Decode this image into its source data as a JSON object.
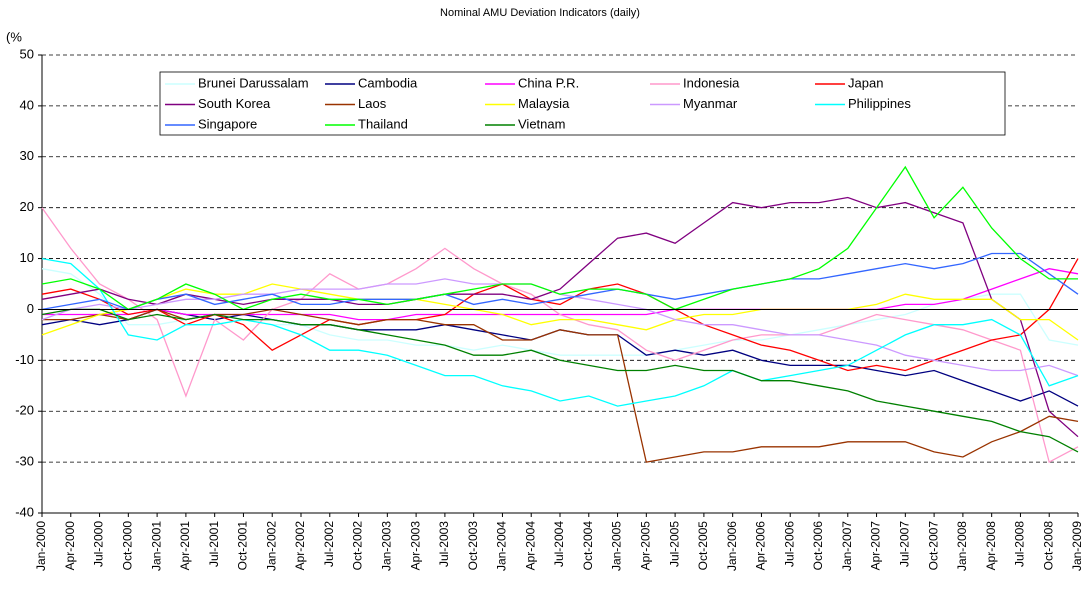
{
  "chart_data": {
    "type": "line",
    "title": "Nominal AMU Deviation Indicators (daily)",
    "y_label": "(%",
    "categories": [
      "Jan-2000",
      "Apr-2000",
      "Jul-2000",
      "Oct-2000",
      "Jan-2001",
      "Apr-2001",
      "Jul-2001",
      "Oct-2001",
      "Jan-2002",
      "Apr-2002",
      "Jul-2002",
      "Oct-2002",
      "Jan-2003",
      "Apr-2003",
      "Jul-2003",
      "Oct-2003",
      "Jan-2004",
      "Apr-2004",
      "Jul-2004",
      "Oct-2004",
      "Jan-2005",
      "Apr-2005",
      "Jul-2005",
      "Oct-2005",
      "Jan-2006",
      "Apr-2006",
      "Jul-2006",
      "Oct-2006",
      "Jan-2007",
      "Apr-2007",
      "Jul-2007",
      "Oct-2007",
      "Jan-2008",
      "Apr-2008",
      "Jul-2008",
      "Oct-2008",
      "Jan-2009"
    ],
    "ylim": [
      -40,
      50
    ],
    "yticks": [
      -40,
      -30,
      -20,
      -10,
      0,
      10,
      20,
      30,
      40,
      50
    ],
    "grid": true,
    "series": [
      {
        "name": "Brunei Darussalam",
        "color": "#ccffff",
        "values": [
          8,
          7,
          3,
          -3,
          -3,
          -2,
          -1,
          -2,
          -3,
          -3,
          -5,
          -6,
          -6,
          -7,
          -7,
          -8,
          -7,
          -8,
          -9,
          -9,
          -9,
          -9,
          -8,
          -7,
          -6,
          -6,
          -5,
          -4,
          -3,
          -2,
          -1,
          1,
          2,
          3,
          3,
          -6,
          -7
        ]
      },
      {
        "name": "Cambodia",
        "color": "#000080",
        "values": [
          -3,
          -2,
          -3,
          -2,
          0,
          -1,
          -2,
          -1,
          -2,
          -3,
          -3,
          -4,
          -4,
          -4,
          -3,
          -4,
          -5,
          -6,
          -4,
          -5,
          -5,
          -9,
          -8,
          -9,
          -8,
          -10,
          -11,
          -11,
          -11,
          -12,
          -13,
          -12,
          -14,
          -16,
          -18,
          -16,
          -19
        ]
      },
      {
        "name": "China P.R.",
        "color": "#ff00ff",
        "values": [
          -1,
          -1,
          -1,
          -1,
          0,
          -1,
          -1,
          -1,
          -1,
          -1,
          -1,
          -2,
          -2,
          -1,
          -1,
          -1,
          -1,
          -1,
          -1,
          -1,
          -1,
          -1,
          0,
          0,
          0,
          0,
          0,
          0,
          0,
          0,
          1,
          1,
          2,
          4,
          6,
          8,
          7
        ]
      },
      {
        "name": "Indonesia",
        "color": "#ff99cc",
        "values": [
          20,
          12,
          5,
          2,
          -2,
          -17,
          -2,
          -6,
          0,
          2,
          7,
          4,
          5,
          8,
          12,
          8,
          5,
          3,
          -1,
          -3,
          -4,
          -8,
          -10,
          -8,
          -6,
          -5,
          -5,
          -5,
          -3,
          -1,
          -2,
          -3,
          -4,
          -6,
          -8,
          -30,
          -27
        ]
      },
      {
        "name": "Japan",
        "color": "#ff0000",
        "values": [
          3,
          4,
          2,
          -1,
          0,
          -3,
          -1,
          -3,
          -8,
          -5,
          -2,
          -3,
          -2,
          -2,
          -1,
          3,
          5,
          2,
          1,
          4,
          5,
          3,
          0,
          -3,
          -5,
          -7,
          -8,
          -10,
          -12,
          -11,
          -12,
          -10,
          -8,
          -6,
          -5,
          0,
          10
        ]
      },
      {
        "name": "South Korea",
        "color": "#800080",
        "values": [
          2,
          3,
          4,
          2,
          1,
          3,
          2,
          1,
          2,
          2,
          2,
          1,
          1,
          2,
          3,
          3,
          3,
          2,
          4,
          9,
          14,
          15,
          13,
          17,
          21,
          20,
          21,
          21,
          22,
          20,
          21,
          19,
          17,
          2,
          -2,
          -20,
          -25
        ]
      },
      {
        "name": "Laos",
        "color": "#993300",
        "values": [
          -2,
          -2,
          -1,
          -2,
          0,
          -2,
          -1,
          -1,
          0,
          -1,
          -2,
          -3,
          -2,
          -2,
          -3,
          -3,
          -6,
          -6,
          -4,
          -5,
          -5,
          -30,
          -29,
          -28,
          -28,
          -27,
          -27,
          -27,
          -26,
          -26,
          -26,
          -28,
          -29,
          -26,
          -24,
          -21,
          -22
        ]
      },
      {
        "name": "Malaysia",
        "color": "#ffff00",
        "values": [
          -5,
          -3,
          -1,
          0,
          2,
          4,
          3,
          3,
          5,
          4,
          3,
          2,
          2,
          2,
          1,
          0,
          -1,
          -3,
          -2,
          -2,
          -3,
          -4,
          -2,
          -1,
          -1,
          0,
          0,
          0,
          0,
          1,
          3,
          2,
          2,
          2,
          -2,
          -2,
          -6
        ]
      },
      {
        "name": "Myanmar",
        "color": "#cc99ff",
        "values": [
          -2,
          0,
          1,
          0,
          1,
          2,
          2,
          3,
          3,
          4,
          4,
          4,
          5,
          5,
          6,
          5,
          5,
          5,
          3,
          2,
          1,
          0,
          -2,
          -3,
          -3,
          -4,
          -5,
          -5,
          -6,
          -7,
          -9,
          -10,
          -11,
          -12,
          -12,
          -11,
          -13
        ]
      },
      {
        "name": "Philippines",
        "color": "#00ffff",
        "values": [
          10,
          9,
          4,
          -5,
          -6,
          -3,
          -3,
          -2,
          -3,
          -5,
          -8,
          -8,
          -9,
          -11,
          -13,
          -13,
          -15,
          -16,
          -18,
          -17,
          -19,
          -18,
          -17,
          -15,
          -12,
          -14,
          -13,
          -12,
          -11,
          -8,
          -5,
          -3,
          -3,
          -2,
          -5,
          -15,
          -13
        ]
      },
      {
        "name": "Singapore",
        "color": "#3366ff",
        "values": [
          0,
          1,
          2,
          0,
          2,
          3,
          1,
          2,
          3,
          1,
          1,
          2,
          2,
          2,
          3,
          1,
          2,
          1,
          2,
          3,
          4,
          3,
          2,
          3,
          4,
          5,
          6,
          6,
          7,
          8,
          9,
          8,
          9,
          11,
          11,
          7,
          3
        ]
      },
      {
        "name": "Thailand",
        "color": "#00ff00",
        "values": [
          5,
          6,
          4,
          0,
          2,
          5,
          3,
          0,
          2,
          3,
          2,
          2,
          1,
          2,
          3,
          4,
          5,
          5,
          3,
          4,
          4,
          3,
          0,
          2,
          4,
          5,
          6,
          8,
          12,
          20,
          28,
          18,
          24,
          16,
          10,
          6,
          6
        ]
      },
      {
        "name": "Vietnam",
        "color": "#008000",
        "values": [
          -1,
          0,
          0,
          -2,
          -1,
          -2,
          -1,
          -2,
          -2,
          -3,
          -3,
          -4,
          -5,
          -6,
          -7,
          -9,
          -9,
          -8,
          -10,
          -11,
          -12,
          -12,
          -11,
          -12,
          -12,
          -14,
          -14,
          -15,
          -16,
          -18,
          -19,
          -20,
          -21,
          -22,
          -24,
          -25,
          -28
        ]
      }
    ]
  }
}
